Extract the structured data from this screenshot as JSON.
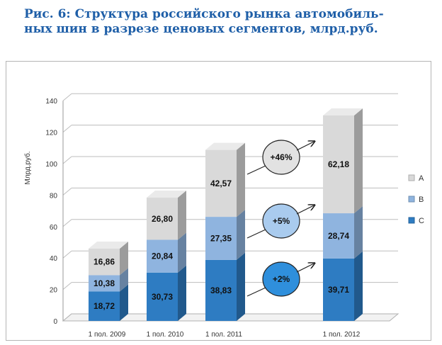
{
  "title": {
    "line1": "Рис. 6: Структура российского рынка автомобиль-",
    "line2": "ных шин в разрезе ценовых сегментов, млрд.руб."
  },
  "chart_data": {
    "type": "bar",
    "stacked": true,
    "three_d": true,
    "ylabel": "Млрд.руб.",
    "ylim": [
      0,
      140
    ],
    "yticks": [
      0,
      20,
      40,
      60,
      80,
      100,
      120,
      140
    ],
    "grid": true,
    "legend_position": "right",
    "categories": [
      "1 пол. 2009",
      "1 пол. 2010",
      "1 пол. 2011",
      "1 пол. 2012"
    ],
    "series": [
      {
        "name": "C",
        "color": "#2e7cc2",
        "values": [
          18.72,
          30.73,
          38.83,
          39.71
        ],
        "labels": [
          "18,72",
          "30,73",
          "38,83",
          "39,71"
        ]
      },
      {
        "name": "B",
        "color": "#8fb4df",
        "values": [
          10.38,
          20.84,
          27.35,
          28.74
        ],
        "labels": [
          "10,38",
          "20,84",
          "27,35",
          "28,74"
        ]
      },
      {
        "name": "A",
        "color": "#d9d9d9",
        "values": [
          16.86,
          26.8,
          42.57,
          62.18
        ],
        "labels": [
          "16,86",
          "26,80",
          "42,57",
          "62,18"
        ]
      }
    ],
    "annotations": [
      {
        "text": "+46%",
        "series": "A",
        "fill": "#e2e2e2"
      },
      {
        "text": "+5%",
        "series": "B",
        "fill": "#a9cbee"
      },
      {
        "text": "+2%",
        "series": "C",
        "fill": "#2f8fdc"
      }
    ]
  }
}
